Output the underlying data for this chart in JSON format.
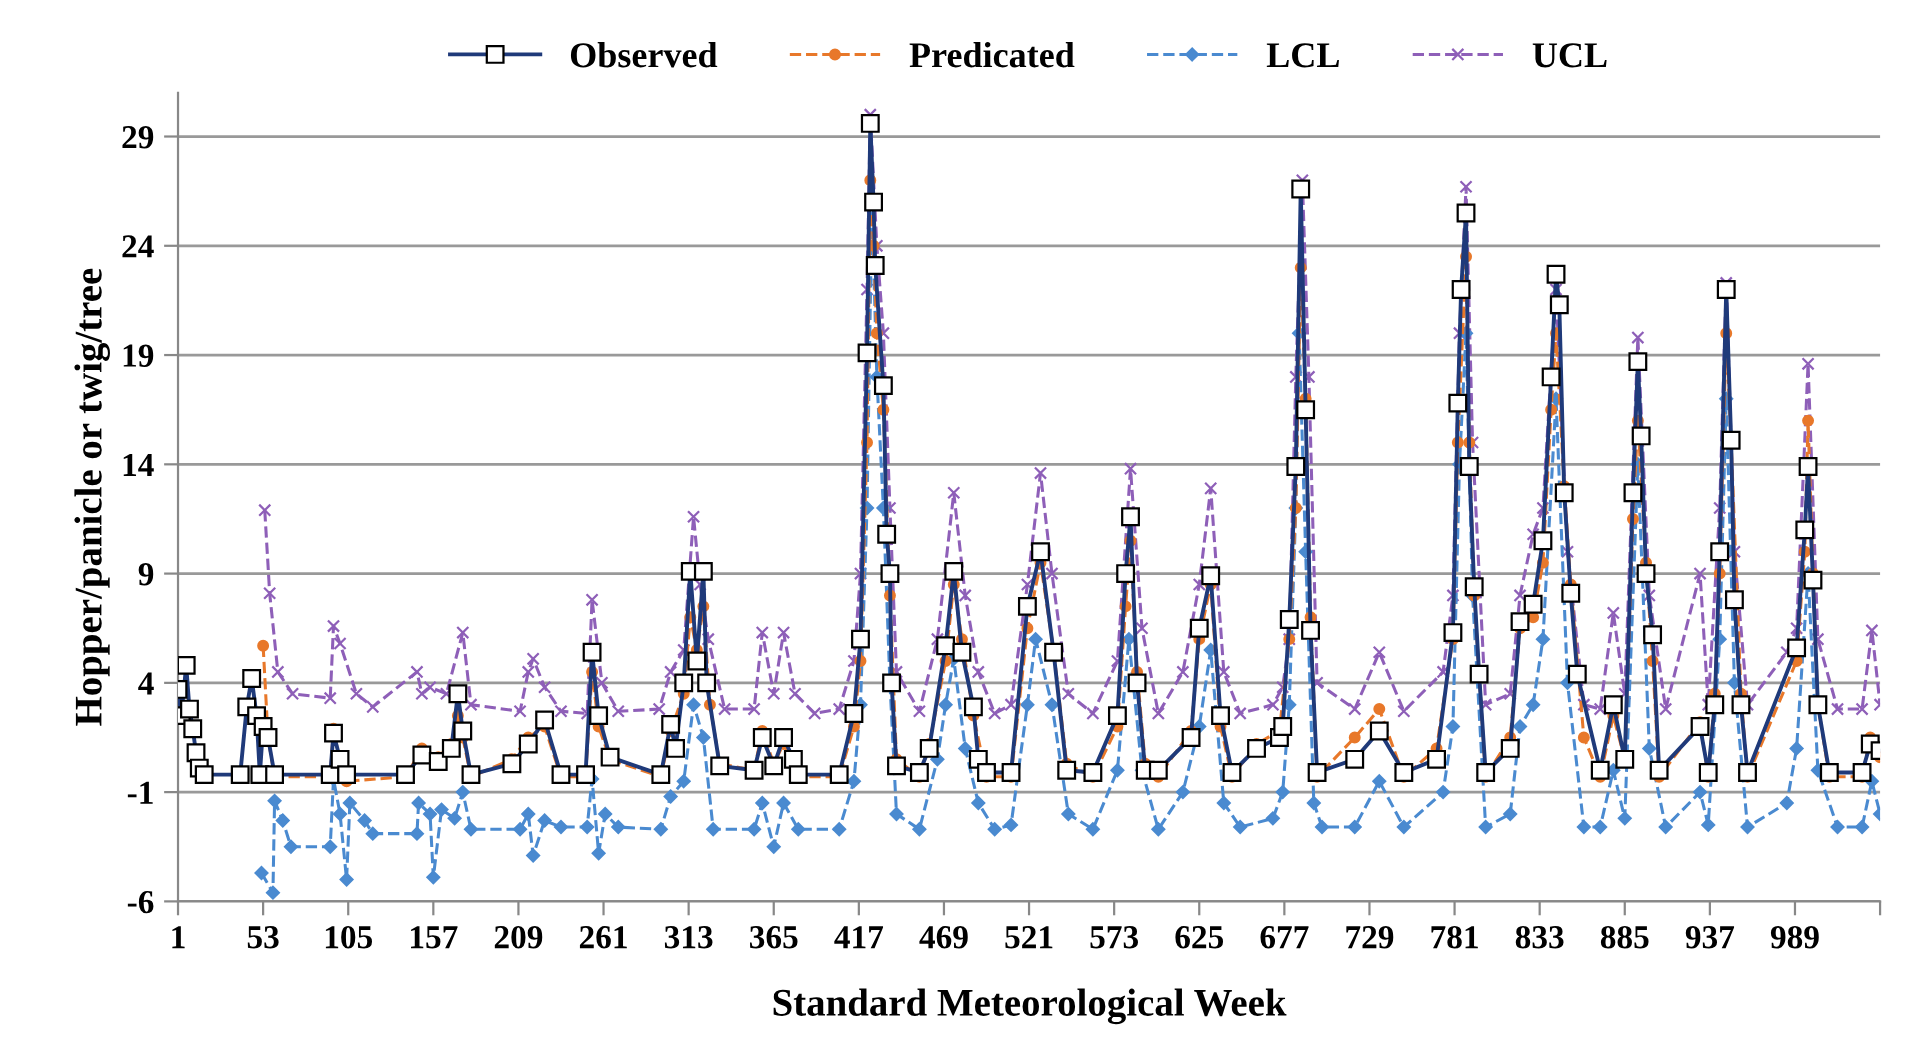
{
  "chart_data": {
    "type": "line",
    "xlabel": "Standard Meteorological Week",
    "ylabel": "Hopper/panicle or twig/tree",
    "xlim": [
      1,
      1041
    ],
    "xticks": [
      1,
      53,
      105,
      157,
      209,
      261,
      313,
      365,
      417,
      469,
      521,
      573,
      625,
      677,
      729,
      781,
      833,
      885,
      937,
      989,
      {
        "value": 1041,
        "label": null
      }
    ],
    "ylim": [
      -6,
      31
    ],
    "yticks": [
      -6,
      -1,
      4,
      9,
      14,
      19,
      24,
      29
    ],
    "grid": "y",
    "legend": "top",
    "series": [
      {
        "name": "Observed",
        "color": "#1f3a7a",
        "marker": "square",
        "line_style": "solid",
        "x": [
          1,
          3,
          6,
          8,
          10,
          12,
          14,
          17,
          39,
          43,
          46,
          49,
          51,
          53,
          56,
          60,
          94,
          96,
          100,
          104,
          140,
          150,
          160,
          168,
          172,
          175,
          180,
          205,
          215,
          225,
          235,
          250,
          254,
          258,
          265,
          296,
          302,
          305,
          310,
          314,
          318,
          322,
          324,
          332,
          353,
          358,
          365,
          371,
          377,
          380,
          405,
          414,
          418,
          422,
          424,
          426,
          427,
          432,
          434,
          436,
          437,
          440,
          454,
          460,
          470,
          475,
          480,
          487,
          490,
          495,
          510,
          520,
          528,
          536,
          544,
          560,
          575,
          580,
          583,
          587,
          592,
          600,
          620,
          625,
          632,
          638,
          645,
          660,
          674,
          676,
          680,
          684,
          687,
          690,
          693,
          697,
          720,
          735,
          750,
          770,
          780,
          783,
          785,
          788,
          790,
          793,
          796,
          800,
          815,
          821,
          829,
          835,
          840,
          843,
          845,
          848,
          852,
          856,
          870,
          878,
          885,
          890,
          893,
          895,
          898,
          902,
          906,
          931,
          936,
          940,
          943,
          947,
          950,
          952,
          956,
          960,
          990,
          995,
          997,
          1000,
          1003,
          1010,
          1030,
          1035,
          1041
        ],
        "values": [
          3.7,
          2.5,
          4.8,
          2.8,
          1.9,
          0.8,
          0.1,
          -0.2,
          -0.2,
          2.9,
          4.2,
          2.5,
          -0.2,
          2.0,
          1.5,
          -0.2,
          -0.2,
          1.7,
          0.5,
          -0.2,
          -0.2,
          0.7,
          0.4,
          1.0,
          3.5,
          1.8,
          -0.2,
          0.3,
          1.2,
          2.3,
          -0.2,
          -0.2,
          5.4,
          2.5,
          0.6,
          -0.2,
          2.1,
          1.0,
          4.0,
          9.1,
          5.0,
          9.1,
          4.0,
          0.2,
          0.0,
          1.5,
          0.2,
          1.5,
          0.5,
          -0.2,
          -0.2,
          2.6,
          6.0,
          19.1,
          29.6,
          26.0,
          23.1,
          17.6,
          10.8,
          9.0,
          4.0,
          0.2,
          -0.1,
          1.0,
          5.7,
          9.1,
          5.4,
          2.9,
          0.5,
          -0.1,
          -0.1,
          7.5,
          10.0,
          5.4,
          0.0,
          -0.1,
          2.5,
          9.0,
          11.6,
          4.0,
          0.0,
          0.0,
          1.5,
          6.5,
          8.9,
          2.5,
          -0.1,
          1.0,
          1.5,
          2.0,
          6.9,
          13.9,
          26.6,
          16.5,
          6.4,
          -0.1,
          0.5,
          1.8,
          -0.1,
          0.5,
          6.3,
          16.8,
          22.0,
          25.5,
          13.9,
          8.4,
          4.4,
          -0.1,
          1.0,
          6.8,
          7.6,
          10.5,
          18.0,
          22.7,
          21.3,
          12.7,
          8.1,
          4.4,
          0.0,
          3.0,
          0.5,
          12.7,
          18.7,
          15.3,
          9.0,
          6.2,
          0.0,
          2.0,
          -0.1,
          3.0,
          10.0,
          22.0,
          15.1,
          7.8,
          3.0,
          -0.1,
          5.6,
          11.0,
          13.9,
          8.7,
          3.0,
          -0.1,
          -0.1,
          1.2,
          0.9
        ]
      },
      {
        "name": "Predicated",
        "color": "#e8782a",
        "marker": "circle",
        "line_style": "dashed",
        "x": [
          53,
          56,
          60,
          94,
          96,
          100,
          104,
          140,
          150,
          160,
          168,
          172,
          175,
          180,
          205,
          215,
          225,
          235,
          250,
          254,
          258,
          265,
          296,
          302,
          310,
          314,
          318,
          322,
          326,
          332,
          353,
          358,
          365,
          371,
          377,
          380,
          405,
          414,
          418,
          422,
          424,
          426,
          428,
          432,
          436,
          440,
          454,
          460,
          470,
          475,
          480,
          487,
          495,
          510,
          520,
          528,
          536,
          544,
          560,
          575,
          580,
          583,
          587,
          592,
          600,
          620,
          625,
          632,
          638,
          645,
          660,
          674,
          680,
          684,
          687,
          690,
          693,
          697,
          720,
          735,
          750,
          770,
          780,
          783,
          788,
          790,
          793,
          800,
          815,
          821,
          829,
          835,
          840,
          843,
          848,
          852,
          860,
          870,
          878,
          885,
          890,
          893,
          898,
          902,
          906,
          931,
          936,
          940,
          943,
          947,
          950,
          956,
          960,
          990,
          995,
          997,
          1000,
          1003,
          1010,
          1030,
          1035,
          1041
        ],
        "values": [
          5.7,
          1.5,
          -0.3,
          -0.3,
          1.9,
          0.3,
          -0.5,
          -0.3,
          1.0,
          0.6,
          1.2,
          2.5,
          1.5,
          -0.3,
          0.5,
          1.5,
          2.0,
          -0.3,
          -0.3,
          4.5,
          2.0,
          0.5,
          -0.3,
          1.8,
          3.5,
          7.0,
          5.5,
          7.5,
          3.0,
          0.3,
          0.0,
          1.8,
          0.3,
          1.2,
          0.4,
          -0.3,
          -0.3,
          2.0,
          5.0,
          15.0,
          27.0,
          24.0,
          20.0,
          16.5,
          8.0,
          0.5,
          -0.3,
          1.2,
          5.0,
          8.5,
          6.0,
          2.5,
          -0.3,
          -0.3,
          6.5,
          9.5,
          5.5,
          0.3,
          -0.3,
          2.0,
          7.5,
          10.5,
          4.5,
          0.3,
          -0.3,
          1.8,
          6.0,
          8.5,
          2.0,
          -0.3,
          1.2,
          1.8,
          6.0,
          12.0,
          23.0,
          17.0,
          7.0,
          -0.3,
          1.5,
          2.8,
          -0.3,
          1.0,
          6.0,
          15.0,
          23.5,
          15.0,
          8.0,
          -0.3,
          1.5,
          6.5,
          7.0,
          9.5,
          16.5,
          20.0,
          13.0,
          8.5,
          1.5,
          -0.3,
          2.5,
          0.5,
          11.5,
          16.0,
          9.5,
          5.0,
          -0.3,
          2.2,
          -0.3,
          3.5,
          9.0,
          20.0,
          15.0,
          3.5,
          -0.3,
          5.0,
          10.0,
          16.0,
          9.0,
          3.0,
          -0.3,
          -0.3,
          1.5,
          0.6
        ]
      },
      {
        "name": "LCL",
        "color": "#4a8ad0",
        "marker": "diamond",
        "line_style": "dashed",
        "x": [
          52,
          59,
          60,
          65,
          70,
          94,
          96,
          100,
          104,
          106,
          115,
          120,
          147,
          148,
          155,
          157,
          162,
          170,
          175,
          180,
          210,
          215,
          218,
          225,
          235,
          251,
          254,
          258,
          262,
          270,
          296,
          302,
          310,
          316,
          322,
          328,
          353,
          358,
          365,
          371,
          380,
          405,
          414,
          418,
          422,
          425,
          428,
          432,
          436,
          440,
          454,
          465,
          470,
          475,
          482,
          490,
          500,
          510,
          520,
          525,
          535,
          545,
          560,
          575,
          582,
          590,
          600,
          615,
          625,
          632,
          640,
          650,
          670,
          676,
          680,
          684,
          686,
          690,
          695,
          700,
          720,
          735,
          750,
          774,
          780,
          784,
          788,
          792,
          800,
          815,
          821,
          829,
          835,
          843,
          850,
          860,
          870,
          878,
          885,
          893,
          900,
          910,
          931,
          936,
          943,
          947,
          952,
          960,
          984,
          990,
          997,
          1003,
          1015,
          1030,
          1036,
          1041
        ],
        "values": [
          -4.7,
          -5.6,
          -1.4,
          -2.3,
          -3.5,
          -3.5,
          -0.4,
          -2.0,
          -5.0,
          -1.5,
          -2.3,
          -2.9,
          -2.9,
          -1.5,
          -2.0,
          -4.9,
          -1.8,
          -2.2,
          -1.0,
          -2.7,
          -2.7,
          -2.0,
          -3.9,
          -2.3,
          -2.6,
          -2.6,
          -0.4,
          -3.8,
          -2.0,
          -2.6,
          -2.7,
          -1.2,
          -0.5,
          3.0,
          1.5,
          -2.7,
          -2.7,
          -1.5,
          -3.5,
          -1.5,
          -2.7,
          -2.7,
          -0.5,
          3.0,
          12.0,
          26.0,
          18.0,
          12.0,
          4.0,
          -2.0,
          -2.7,
          0.5,
          3.0,
          5.1,
          1.0,
          -1.5,
          -2.7,
          -2.5,
          3.0,
          6.0,
          3.0,
          -2.0,
          -2.7,
          0.0,
          6.0,
          0.0,
          -2.7,
          -1.0,
          2.0,
          5.5,
          -1.5,
          -2.6,
          -2.2,
          -1.0,
          3.0,
          12.0,
          20.0,
          10.0,
          -1.5,
          -2.6,
          -2.6,
          -0.5,
          -2.6,
          -1.0,
          2.0,
          14.0,
          20.0,
          8.0,
          -2.6,
          -2.0,
          2.0,
          3.0,
          6.0,
          17.0,
          4.0,
          -2.6,
          -2.6,
          0.0,
          -2.2,
          14.0,
          1.0,
          -2.6,
          -1.0,
          -2.5,
          6.0,
          17.0,
          4.0,
          -2.6,
          -1.5,
          1.0,
          9.0,
          0.0,
          -2.6,
          -2.6,
          -0.5,
          -2.0
        ]
      },
      {
        "name": "UCL",
        "color": "#8e5fb8",
        "marker": "cross",
        "line_style": "dashed",
        "x": [
          54,
          57,
          62,
          71,
          94,
          96,
          100,
          110,
          120,
          147,
          150,
          155,
          165,
          175,
          180,
          210,
          215,
          218,
          225,
          235,
          251,
          254,
          260,
          270,
          295,
          302,
          310,
          316,
          320,
          325,
          335,
          353,
          358,
          365,
          371,
          378,
          390,
          405,
          414,
          418,
          422,
          424,
          428,
          432,
          436,
          440,
          454,
          465,
          475,
          482,
          490,
          500,
          510,
          520,
          528,
          535,
          545,
          560,
          575,
          583,
          590,
          600,
          615,
          625,
          632,
          640,
          650,
          670,
          676,
          680,
          684,
          688,
          692,
          697,
          720,
          735,
          750,
          774,
          780,
          784,
          788,
          792,
          800,
          815,
          821,
          829,
          835,
          843,
          850,
          860,
          870,
          878,
          885,
          893,
          900,
          910,
          931,
          936,
          943,
          947,
          952,
          960,
          984,
          990,
          997,
          1003,
          1015,
          1030,
          1036,
          1041
        ],
        "values": [
          11.9,
          8.1,
          4.5,
          3.5,
          3.3,
          6.6,
          5.8,
          3.5,
          2.9,
          4.5,
          3.5,
          3.8,
          3.5,
          6.3,
          3.0,
          2.7,
          4.5,
          5.1,
          3.8,
          2.7,
          2.6,
          7.8,
          4.0,
          2.7,
          2.8,
          4.5,
          5.5,
          11.6,
          8.5,
          6.0,
          2.8,
          2.8,
          6.3,
          3.5,
          6.3,
          3.5,
          2.6,
          2.8,
          5.0,
          9.0,
          22.0,
          30.0,
          24.0,
          20.0,
          12.0,
          4.5,
          2.7,
          6.0,
          12.7,
          8.0,
          4.5,
          2.6,
          3.0,
          8.5,
          13.6,
          9.0,
          3.5,
          2.6,
          5.0,
          13.8,
          6.5,
          2.6,
          4.5,
          8.5,
          12.9,
          4.5,
          2.6,
          3.0,
          3.8,
          6.0,
          18.0,
          27.0,
          18.0,
          4.0,
          2.8,
          5.4,
          2.7,
          4.5,
          8.0,
          20.0,
          26.7,
          15.0,
          3.0,
          3.5,
          8.0,
          10.8,
          12.0,
          22.0,
          10.0,
          3.0,
          2.8,
          7.2,
          3.5,
          19.8,
          8.0,
          2.8,
          9.0,
          3.0,
          12.0,
          22.3,
          10.0,
          3.0,
          5.4,
          6.5,
          18.6,
          6.0,
          2.8,
          2.8,
          6.4,
          3.0
        ]
      }
    ]
  }
}
